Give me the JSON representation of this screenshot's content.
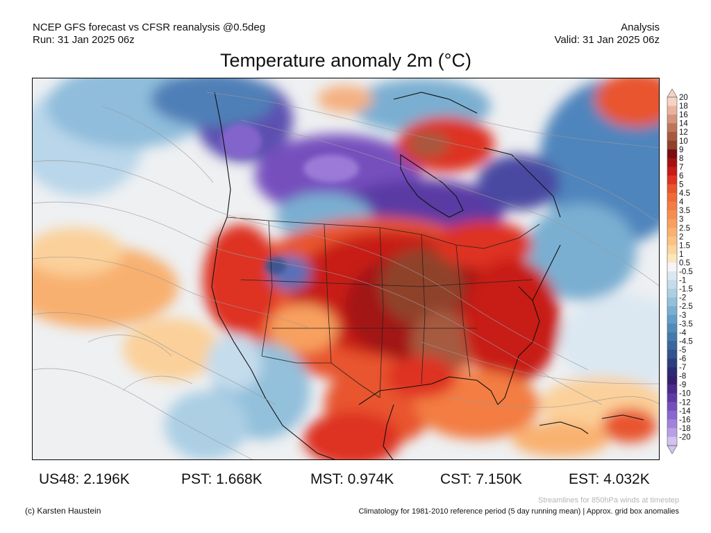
{
  "header": {
    "left_line1": "NCEP GFS forecast vs CFSR reanalysis @0.5deg",
    "left_line2": "Run: 31 Jan 2025 06z",
    "right_line1": "Analysis",
    "right_line2": "Valid: 31 Jan 2025 06z"
  },
  "title": "Temperature anomaly 2m (°C)",
  "colorbar": {
    "labels": [
      "20",
      "18",
      "16",
      "14",
      "12",
      "10",
      "9",
      "8",
      "7",
      "6",
      "5",
      "4.5",
      "4",
      "3.5",
      "3",
      "2.5",
      "2",
      "1.5",
      "1",
      "0.5",
      "-0.5",
      "-1",
      "-1.5",
      "-2",
      "-2.5",
      "-3",
      "-3.5",
      "-4",
      "-4.5",
      "-5",
      "-6",
      "-7",
      "-8",
      "-9",
      "-10",
      "-12",
      "-14",
      "-16",
      "-18",
      "-20"
    ],
    "colors": [
      "#f6d3c2",
      "#e8b49e",
      "#d4957c",
      "#bd7659",
      "#a65a3f",
      "#8f4229",
      "#7a0d0d",
      "#a31212",
      "#c81a16",
      "#de3322",
      "#e8552d",
      "#ef6a37",
      "#f37d43",
      "#f58f51",
      "#f7a05f",
      "#f9b16f",
      "#fbc283",
      "#fcd49c",
      "#fde6bd",
      "#f5f5f5",
      "#dbe8f2",
      "#c4dcec",
      "#accfe4",
      "#93c0db",
      "#7aafd1",
      "#649dc6",
      "#528bba",
      "#4578ab",
      "#3b659d",
      "#33538e",
      "#2d3e80",
      "#2b2a77",
      "#361d6f",
      "#4a2a8a",
      "#5e3aa6",
      "#7550bd",
      "#8a68cf",
      "#a283dc",
      "#b9a0e6",
      "#d3c3ef"
    ]
  },
  "stats": [
    {
      "label": "US48: 2.196K"
    },
    {
      "label": "PST: 1.668K"
    },
    {
      "label": "MST: 0.974K"
    },
    {
      "label": "CST: 7.150K"
    },
    {
      "label": "EST: 4.032K"
    }
  ],
  "footer": {
    "credit": "(c) Karsten Haustein",
    "streamlines_note": "Streamlines for 850hPa winds at timestep",
    "climatology_note": "Climatology for 1981-2010 reference period (5 day running mean) | Approx. grid box anomalies"
  }
}
